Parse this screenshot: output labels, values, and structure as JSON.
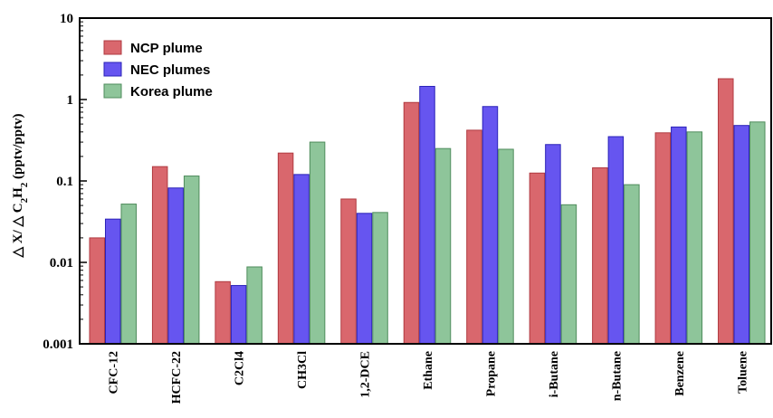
{
  "chart_data": {
    "type": "bar",
    "yscale": "log",
    "ylim": [
      0.001,
      10
    ],
    "yticks": [
      {
        "value": 0.001,
        "label": "0.001"
      },
      {
        "value": 0.01,
        "label": "0.01"
      },
      {
        "value": 0.1,
        "label": "0.1"
      },
      {
        "value": 1,
        "label": "1"
      },
      {
        "value": 10,
        "label": "10"
      }
    ],
    "ylabel": {
      "part1": "△ X/ △ C",
      "sub": "2",
      "part2": "H",
      "sub2": "2",
      "part3": " (pptv/pptv)"
    },
    "legend_position": "top-left",
    "categories": [
      "CFC-12",
      "HCFC-22",
      "C2Cl4",
      "CH3Cl",
      "1,2-DCE",
      "Ethane",
      "Propane",
      "i-Butane",
      "n-Butane",
      "Benzene",
      "Toluene"
    ],
    "series": [
      {
        "name": "NCP plume",
        "fill": "#d9676d",
        "stroke": "#b03a40",
        "values": [
          0.02,
          0.15,
          0.0058,
          0.22,
          0.06,
          0.92,
          0.42,
          0.125,
          0.145,
          0.39,
          1.8
        ]
      },
      {
        "name": "NEC plumes",
        "fill": "#6655f0",
        "stroke": "#2a22b8",
        "values": [
          0.034,
          0.082,
          0.0052,
          0.12,
          0.04,
          1.45,
          0.82,
          0.28,
          0.35,
          0.46,
          0.48
        ]
      },
      {
        "name": "Korea plume",
        "fill": "#8ec59a",
        "stroke": "#4f8c5c",
        "values": [
          0.052,
          0.115,
          0.0088,
          0.3,
          0.041,
          0.25,
          0.245,
          0.051,
          0.09,
          0.4,
          0.53
        ]
      }
    ]
  }
}
